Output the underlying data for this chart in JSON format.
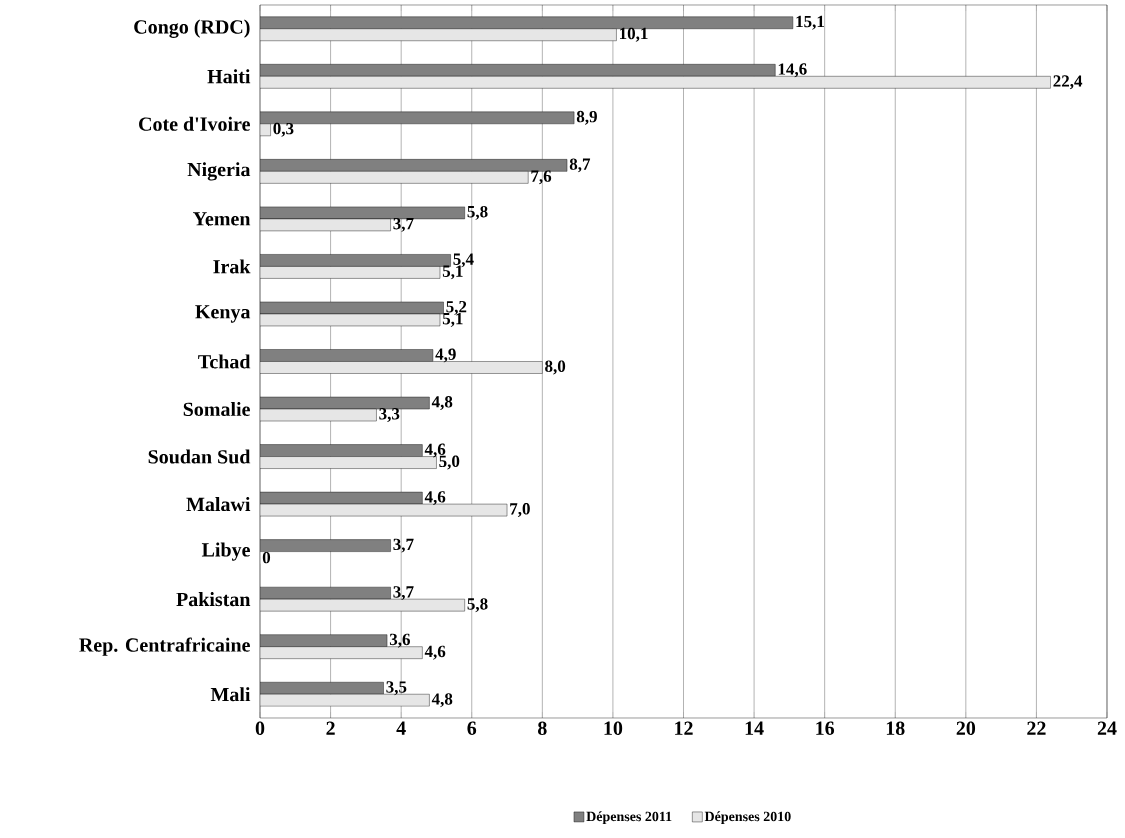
{
  "chart_data": {
    "type": "bar",
    "orientation": "horizontal",
    "categories": [
      "Congo (RDC)",
      "Haiti",
      "Cote d'Ivoire",
      "Nigeria",
      "Yemen",
      "Irak",
      "Kenya",
      "Tchad",
      "Somalie",
      "Soudan Sud",
      "Malawi",
      "Libye",
      "Pakistan",
      "Rep. Centrafricaine",
      "Mali"
    ],
    "series": [
      {
        "name": "Dépenses 2011",
        "color": "#808080",
        "values": [
          15.1,
          14.6,
          8.9,
          8.7,
          5.8,
          5.4,
          5.2,
          4.9,
          4.8,
          4.6,
          4.6,
          3.7,
          3.7,
          3.6,
          3.5
        ],
        "value_labels": [
          "15,1",
          "14,6",
          "8,9",
          "8,7",
          "5,8",
          "5,4",
          "5,2",
          "4,9",
          "4,8",
          "4,6",
          "4,6",
          "3,7",
          "3,7",
          "3,6",
          "3,5"
        ]
      },
      {
        "name": "Dépenses 2010",
        "color": "#e6e6e6",
        "values": [
          10.1,
          22.4,
          0.3,
          7.6,
          3.7,
          5.1,
          5.1,
          8.0,
          3.3,
          5.0,
          7.0,
          0,
          5.8,
          4.6,
          4.8
        ],
        "value_labels": [
          "10,1",
          "22,4",
          "0,3",
          "7,6",
          "3,7",
          "5,1",
          "5,1",
          "8,0",
          "3,3",
          "5,0",
          "7,0",
          "0",
          "5,8",
          "4,6",
          "4,8"
        ]
      }
    ],
    "xlim": [
      0,
      24
    ],
    "xticks": [
      0,
      2,
      4,
      6,
      8,
      10,
      12,
      14,
      16,
      18,
      20,
      22,
      24
    ],
    "grid": "x",
    "legend": "bottom"
  }
}
